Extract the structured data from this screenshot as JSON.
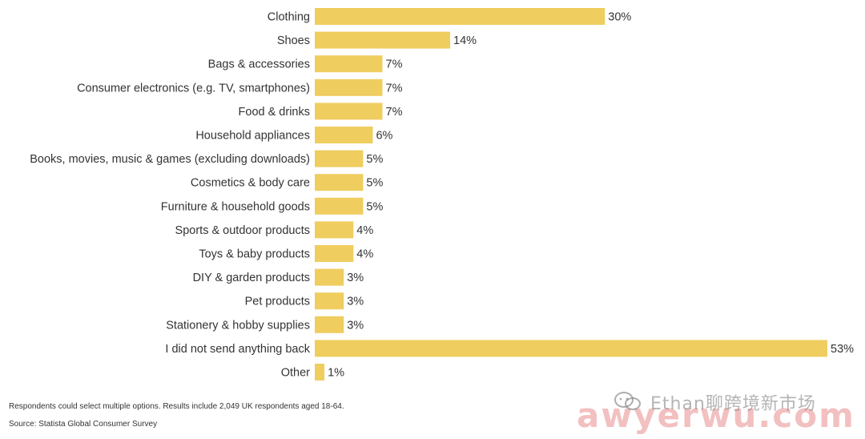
{
  "chart_data": {
    "type": "bar",
    "orientation": "horizontal",
    "categories": [
      "Clothing",
      "Shoes",
      "Bags & accessories",
      "Consumer electronics (e.g. TV, smartphones)",
      "Food & drinks",
      "Household appliances",
      "Books, movies, music & games (excluding downloads)",
      "Cosmetics & body care",
      "Furniture & household goods",
      "Sports & outdoor products",
      "Toys & baby products",
      "DIY & garden products",
      "Pet products",
      "Stationery & hobby supplies",
      "I did not send anything back",
      "Other"
    ],
    "values": [
      30,
      14,
      7,
      7,
      7,
      6,
      5,
      5,
      5,
      4,
      4,
      3,
      3,
      3,
      53,
      1
    ],
    "value_labels": [
      "30%",
      "14%",
      "7%",
      "7%",
      "7%",
      "6%",
      "5%",
      "5%",
      "5%",
      "4%",
      "4%",
      "3%",
      "3%",
      "3%",
      "53%",
      "1%"
    ],
    "unit": "%",
    "xlim": [
      0,
      53
    ],
    "grid": false,
    "legend": "none",
    "bar_color": "#efcd5f"
  },
  "footer": {
    "note": "Respondents could select multiple options. Results include 2,049 UK respondents aged 18-64.",
    "source": "Source: Statista Global Consumer Survey"
  },
  "watermark": {
    "brand": "Ethan聊跨境新市场",
    "site": "awyerwu.com",
    "icon": "wechat-icon"
  }
}
